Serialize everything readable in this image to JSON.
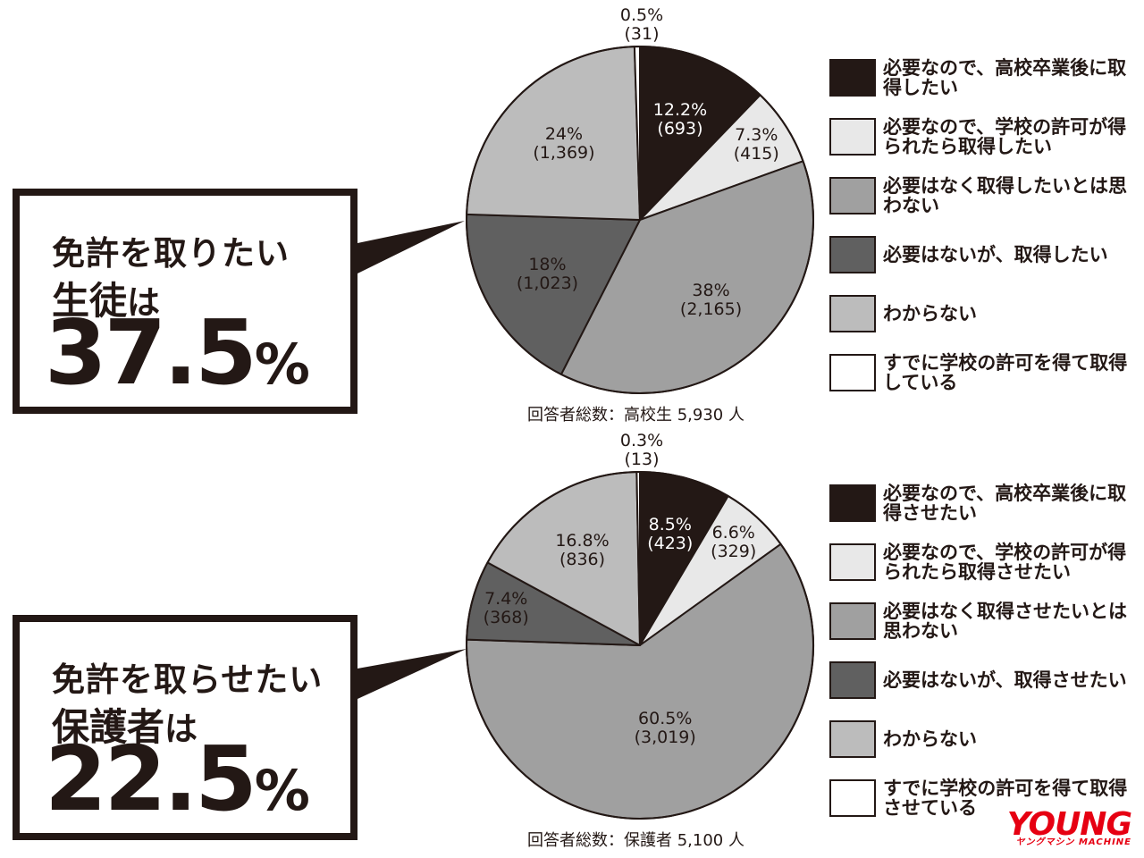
{
  "colors": {
    "ink": "#231815",
    "black_slice": "#231815",
    "lightgray_slice": "#e8e8e8",
    "gray_slice": "#a0a0a0",
    "darkgray_slice": "#606060",
    "silver_slice": "#bcbcbc",
    "white_slice": "#ffffff",
    "logo": "#e60012"
  },
  "students": {
    "callout": {
      "line1": "免許を取りたい",
      "line2_bold": "生徒",
      "line2_rest": "は",
      "big_number": "37.5",
      "big_unit": "%"
    },
    "total": "回答者総数：高校生 5,930 人",
    "legend": [
      "必要なので、高校卒業後に取得したい",
      "必要なので、学校の許可が得られたら取得したい",
      "必要はなく取得したいとは思わない",
      "必要はないが、取得したい",
      "わからない",
      "すでに学校の許可を得て取得している"
    ]
  },
  "parents": {
    "callout": {
      "line1": "免許を取らせたい",
      "line2_bold": "保護者",
      "line2_rest": "は",
      "big_number": "22.5",
      "big_unit": "%"
    },
    "total": "回答者総数：保護者 5,100 人",
    "legend": [
      "必要なので、高校卒業後に取得させたい",
      "必要なので、学校の許可が得られたら取得させたい",
      "必要はなく取得させたいとは思わない",
      "必要はないが、取得させたい",
      "わからない",
      "すでに学校の許可を得て取得させている"
    ]
  },
  "logo": {
    "main": "YOUNG",
    "sub": "ヤングマシン MACHINE"
  },
  "chart_data": [
    {
      "type": "pie",
      "total_respondents": 5930,
      "categories": [
        "必要なので、高校卒業後に取得したい",
        "必要なので、学校の許可が得られたら取得したい",
        "必要はなく取得したいとは思わない",
        "必要はないが、取得したい",
        "わからない",
        "すでに学校の許可を得て取得している"
      ],
      "values": [
        12.2,
        7.3,
        38,
        18,
        24,
        0.5
      ],
      "value_labels": [
        "12.2%",
        "7.3%",
        "38%",
        "18%",
        "24%",
        "0.5%"
      ],
      "counts": [
        693,
        415,
        2165,
        1023,
        1369,
        31
      ],
      "count_labels": [
        "(693)",
        "(415)",
        "(2,165)",
        "(1,023)",
        "(1,369)",
        "(31)"
      ],
      "colors": [
        "#231815",
        "#e8e8e8",
        "#a0a0a0",
        "#606060",
        "#bcbcbc",
        "#ffffff"
      ],
      "legend_placement": "right",
      "start": "12 o'clock, clockwise"
    },
    {
      "type": "pie",
      "total_respondents": 5100,
      "categories": [
        "必要なので、高校卒業後に取得させたい",
        "必要なので、学校の許可が得られたら取得させたい",
        "必要はなく取得させたいとは思わない",
        "必要はないが、取得させたい",
        "わからない",
        "すでに学校の許可を得て取得させている"
      ],
      "values": [
        8.5,
        6.6,
        60.5,
        7.4,
        16.8,
        0.3
      ],
      "value_labels": [
        "8.5%",
        "6.6%",
        "60.5%",
        "7.4%",
        "16.8%",
        "0.3%"
      ],
      "counts": [
        423,
        329,
        3019,
        368,
        836,
        13
      ],
      "count_labels": [
        "(423)",
        "(329)",
        "(3,019)",
        "(368)",
        "(836)",
        "(13)"
      ],
      "colors": [
        "#231815",
        "#e8e8e8",
        "#a0a0a0",
        "#606060",
        "#bcbcbc",
        "#ffffff"
      ],
      "legend_placement": "right",
      "start": "12 o'clock, clockwise"
    }
  ]
}
